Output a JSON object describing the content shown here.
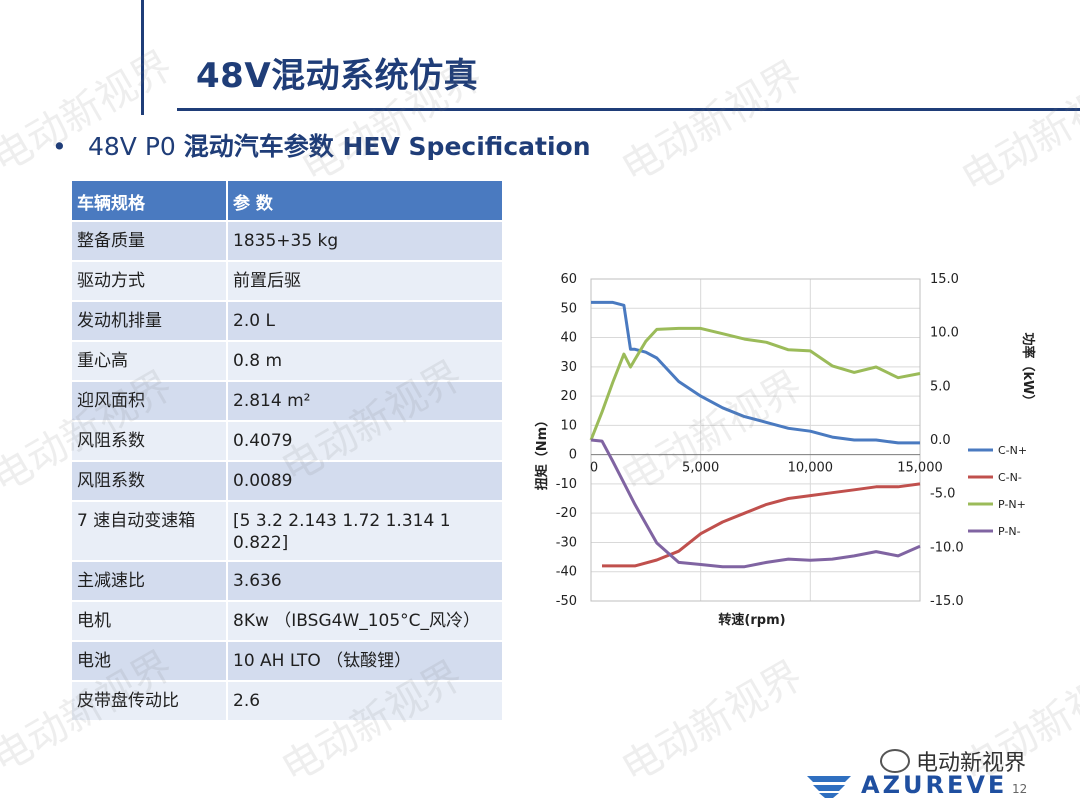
{
  "slide": {
    "title": "48V混动系统仿真",
    "subtitle_bullet": "•",
    "subtitle_prefix": "48V P0 ",
    "subtitle_bold": "混动汽车参数 HEV Specification",
    "page_number": "12",
    "brand": "AZUREVE",
    "wechat_name": "电动新视界",
    "watermark_text": "电动新视界"
  },
  "spec_table": {
    "headers": [
      "车辆规格",
      "参 数"
    ],
    "rows": [
      [
        "整备质量",
        "1835+35 kg"
      ],
      [
        "驱动方式",
        "前置后驱"
      ],
      [
        "发动机排量",
        "2.0 L"
      ],
      [
        "重心高",
        "0.8 m"
      ],
      [
        "迎风面积",
        "2.814 m²"
      ],
      [
        "风阻系数",
        "0.4079"
      ],
      [
        "风阻系数",
        "0.0089"
      ],
      [
        "7 速自动变速箱",
        "[5  3.2  2.143  1.72  1.314  1 0.822]"
      ],
      [
        "主减速比",
        "3.636"
      ],
      [
        "电机",
        "8Kw （IBSG4W_105°C_风冷）"
      ],
      [
        "电池",
        "10 AH LTO （钛酸锂）"
      ],
      [
        "皮带盘传动比",
        "2.6"
      ]
    ]
  },
  "chart_data": {
    "type": "line",
    "title": "",
    "xlabel": "转速(rpm)",
    "ylabel": "扭矩（Nm）",
    "y2label": "功率（kW）",
    "xlim": [
      0,
      15000
    ],
    "ylim": [
      -50,
      60
    ],
    "y2lim": [
      -15,
      15
    ],
    "x_ticks": [
      "0",
      "5,000",
      "10,000",
      "15,000"
    ],
    "y_ticks": [
      "60",
      "50",
      "40",
      "30",
      "20",
      "10",
      "0",
      "-10",
      "-20",
      "-30",
      "-40",
      "-50"
    ],
    "y2_ticks": [
      "15.0",
      "10.0",
      "5.0",
      "0.0",
      "-5.0",
      "-10.0",
      "-15.0"
    ],
    "legend_position": "right",
    "series": [
      {
        "name": "C-N+",
        "axis": "left",
        "color": "#4a7ac0",
        "x": [
          0,
          500,
          1000,
          1500,
          1800,
          2000,
          2500,
          3000,
          4000,
          5000,
          6000,
          7000,
          8000,
          9000,
          10000,
          11000,
          12000,
          13000,
          14000,
          15000
        ],
        "y": [
          52,
          52,
          52,
          51,
          36,
          36,
          35,
          33,
          25,
          20,
          16,
          13,
          11,
          9,
          8,
          6,
          5,
          5,
          4,
          4
        ]
      },
      {
        "name": "C-N-",
        "axis": "left",
        "color": "#c0504d",
        "x": [
          500,
          1000,
          2000,
          3000,
          4000,
          5000,
          6000,
          7000,
          8000,
          9000,
          10000,
          11000,
          12000,
          13000,
          14000,
          15000
        ],
        "y": [
          -38,
          -38,
          -38,
          -36,
          -33,
          -27,
          -23,
          -20,
          -17,
          -15,
          -14,
          -13,
          -12,
          -11,
          -11,
          -10
        ]
      },
      {
        "name": "P-N+",
        "axis": "right",
        "color": "#9bbb59",
        "x": [
          0,
          500,
          1000,
          1500,
          1800,
          2000,
          2500,
          3000,
          4000,
          5000,
          6000,
          7000,
          8000,
          9000,
          10000,
          11000,
          12000,
          13000,
          14000,
          15000
        ],
        "y": [
          0,
          2.6,
          5.4,
          8,
          6.8,
          7.5,
          9.2,
          10.3,
          10.4,
          10.4,
          9.9,
          9.4,
          9.1,
          8.4,
          8.3,
          6.9,
          6.3,
          6.8,
          5.8,
          6.2
        ]
      },
      {
        "name": "P-N-",
        "axis": "right",
        "color": "#8064a2",
        "x": [
          0,
          500,
          1000,
          1500,
          2000,
          3000,
          4000,
          5000,
          6000,
          7000,
          8000,
          9000,
          10000,
          11000,
          12000,
          13000,
          14000,
          15000
        ],
        "y": [
          0,
          -0.1,
          -2,
          -4,
          -6,
          -9.6,
          -11.4,
          -11.6,
          -11.8,
          -11.8,
          -11.4,
          -11.1,
          -11.2,
          -11.1,
          -10.8,
          -10.4,
          -10.8,
          -9.9
        ]
      }
    ]
  }
}
